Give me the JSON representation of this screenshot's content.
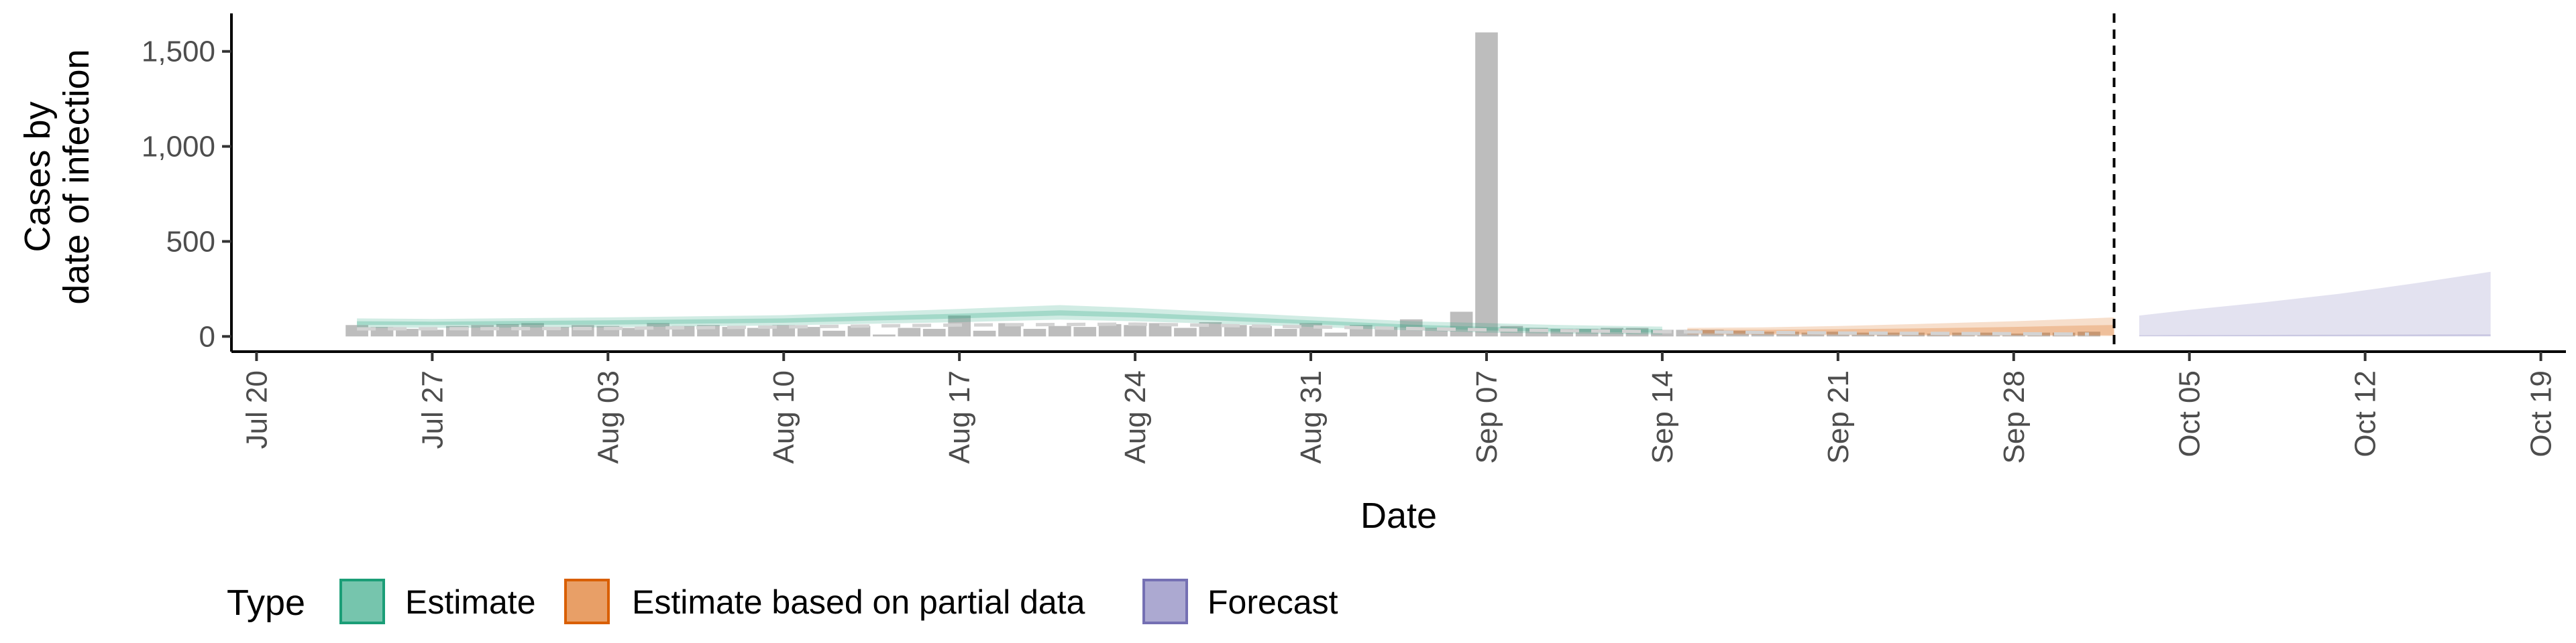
{
  "chart_data": {
    "type": "bar",
    "xlabel": "Date",
    "ylabel_lines": [
      "Cases by",
      "date of infection"
    ],
    "x_ticks": [
      "Jul 20",
      "Jul 27",
      "Aug 03",
      "Aug 10",
      "Aug 17",
      "Aug 24",
      "Aug 31",
      "Sep 07",
      "Sep 14",
      "Sep 21",
      "Sep 28",
      "Oct 05",
      "Oct 12",
      "Oct 19"
    ],
    "x_tick_dates": [
      "2020-07-20",
      "2020-07-27",
      "2020-08-03",
      "2020-08-10",
      "2020-08-17",
      "2020-08-24",
      "2020-08-31",
      "2020-09-07",
      "2020-09-14",
      "2020-09-21",
      "2020-09-28",
      "2020-10-05",
      "2020-10-12",
      "2020-10-19"
    ],
    "xlim": [
      "2020-07-19",
      "2020-10-20"
    ],
    "y_ticks": [
      0,
      500,
      1000,
      1500
    ],
    "y_tick_labels": [
      "0",
      "500",
      "1,000",
      "1,500"
    ],
    "ylim": [
      -80,
      1700
    ],
    "forecast_date": "2020-10-02",
    "bars": {
      "color": "#bdbdbd",
      "dates": [
        "2020-07-24",
        "2020-07-25",
        "2020-07-26",
        "2020-07-27",
        "2020-07-28",
        "2020-07-29",
        "2020-07-30",
        "2020-07-31",
        "2020-08-01",
        "2020-08-02",
        "2020-08-03",
        "2020-08-04",
        "2020-08-05",
        "2020-08-06",
        "2020-08-07",
        "2020-08-08",
        "2020-08-09",
        "2020-08-10",
        "2020-08-11",
        "2020-08-12",
        "2020-08-13",
        "2020-08-14",
        "2020-08-15",
        "2020-08-16",
        "2020-08-17",
        "2020-08-18",
        "2020-08-19",
        "2020-08-20",
        "2020-08-21",
        "2020-08-22",
        "2020-08-23",
        "2020-08-24",
        "2020-08-25",
        "2020-08-26",
        "2020-08-27",
        "2020-08-28",
        "2020-08-29",
        "2020-08-30",
        "2020-08-31",
        "2020-09-01",
        "2020-09-02",
        "2020-09-03",
        "2020-09-04",
        "2020-09-05",
        "2020-09-06",
        "2020-09-07",
        "2020-09-08",
        "2020-09-09",
        "2020-09-10",
        "2020-09-11",
        "2020-09-12",
        "2020-09-13",
        "2020-09-14",
        "2020-09-15",
        "2020-09-16",
        "2020-09-17",
        "2020-09-18",
        "2020-09-19",
        "2020-09-20",
        "2020-09-21",
        "2020-09-22",
        "2020-09-23",
        "2020-09-24",
        "2020-09-25",
        "2020-09-26",
        "2020-09-27",
        "2020-09-28",
        "2020-09-29",
        "2020-09-30",
        "2020-10-01"
      ],
      "values": [
        60,
        50,
        40,
        35,
        55,
        60,
        65,
        70,
        50,
        60,
        55,
        45,
        70,
        55,
        60,
        50,
        45,
        60,
        50,
        30,
        55,
        10,
        45,
        40,
        110,
        30,
        70,
        40,
        55,
        50,
        65,
        60,
        70,
        45,
        75,
        60,
        55,
        40,
        70,
        20,
        60,
        50,
        90,
        45,
        130,
        1600,
        55,
        45,
        40,
        40,
        45,
        45,
        35,
        35,
        35,
        30,
        25,
        25,
        20,
        25,
        20,
        20,
        20,
        15,
        20,
        20,
        15,
        20,
        20,
        25
      ]
    },
    "median": {
      "color": "#d3d3d3",
      "dates": [
        "2020-07-24",
        "2020-08-03",
        "2020-08-10",
        "2020-08-17",
        "2020-08-24",
        "2020-08-31",
        "2020-09-07",
        "2020-09-14",
        "2020-09-21",
        "2020-09-28",
        "2020-10-01"
      ],
      "values": [
        40,
        42,
        50,
        60,
        65,
        50,
        35,
        25,
        18,
        14,
        12
      ]
    },
    "series": [
      {
        "name": "Estimate",
        "color": "#1b9e77",
        "dates": [
          "2020-07-24",
          "2020-07-27",
          "2020-08-03",
          "2020-08-10",
          "2020-08-17",
          "2020-08-21",
          "2020-08-24",
          "2020-08-31",
          "2020-09-04",
          "2020-09-07",
          "2020-09-10",
          "2020-09-14"
        ],
        "inner_low": [
          60,
          60,
          62,
          72,
          95,
          110,
          100,
          65,
          45,
          32,
          25,
          20
        ],
        "inner_high": [
          80,
          78,
          85,
          95,
          120,
          138,
          125,
          85,
          62,
          50,
          42,
          38
        ],
        "outer_low": [
          45,
          45,
          48,
          58,
          75,
          88,
          80,
          50,
          32,
          20,
          15,
          10
        ],
        "outer_high": [
          95,
          92,
          100,
          112,
          145,
          165,
          150,
          105,
          80,
          70,
          60,
          52
        ]
      },
      {
        "name": "Estimate based on partial data",
        "color": "#d95f02",
        "dates": [
          "2020-09-15",
          "2020-09-18",
          "2020-09-21",
          "2020-09-24",
          "2020-09-28",
          "2020-10-01",
          "2020-10-02"
        ],
        "inner_low": [
          18,
          15,
          12,
          10,
          8,
          7,
          6
        ],
        "inner_high": [
          35,
          35,
          38,
          42,
          50,
          58,
          60
        ],
        "outer_low": [
          10,
          8,
          6,
          4,
          3,
          2,
          2
        ],
        "outer_high": [
          45,
          48,
          55,
          65,
          80,
          95,
          100
        ]
      },
      {
        "name": "Forecast",
        "color": "#7570b3",
        "dates": [
          "2020-10-03",
          "2020-10-05",
          "2020-10-08",
          "2020-10-11",
          "2020-10-14",
          "2020-10-17"
        ],
        "inner_low": [
          2,
          2,
          2,
          2,
          2,
          2
        ],
        "inner_high": [
          6,
          7,
          8,
          9,
          10,
          11
        ],
        "outer_low": [
          0,
          0,
          0,
          0,
          0,
          0
        ],
        "outer_high": [
          110,
          140,
          180,
          225,
          280,
          340
        ]
      }
    ],
    "legend": {
      "title": "Type",
      "position": "bottom",
      "items": [
        {
          "label": "Estimate",
          "color": "#1b9e77"
        },
        {
          "label": "Estimate based on partial data",
          "color": "#d95f02"
        },
        {
          "label": "Forecast",
          "color": "#7570b3"
        }
      ]
    }
  }
}
